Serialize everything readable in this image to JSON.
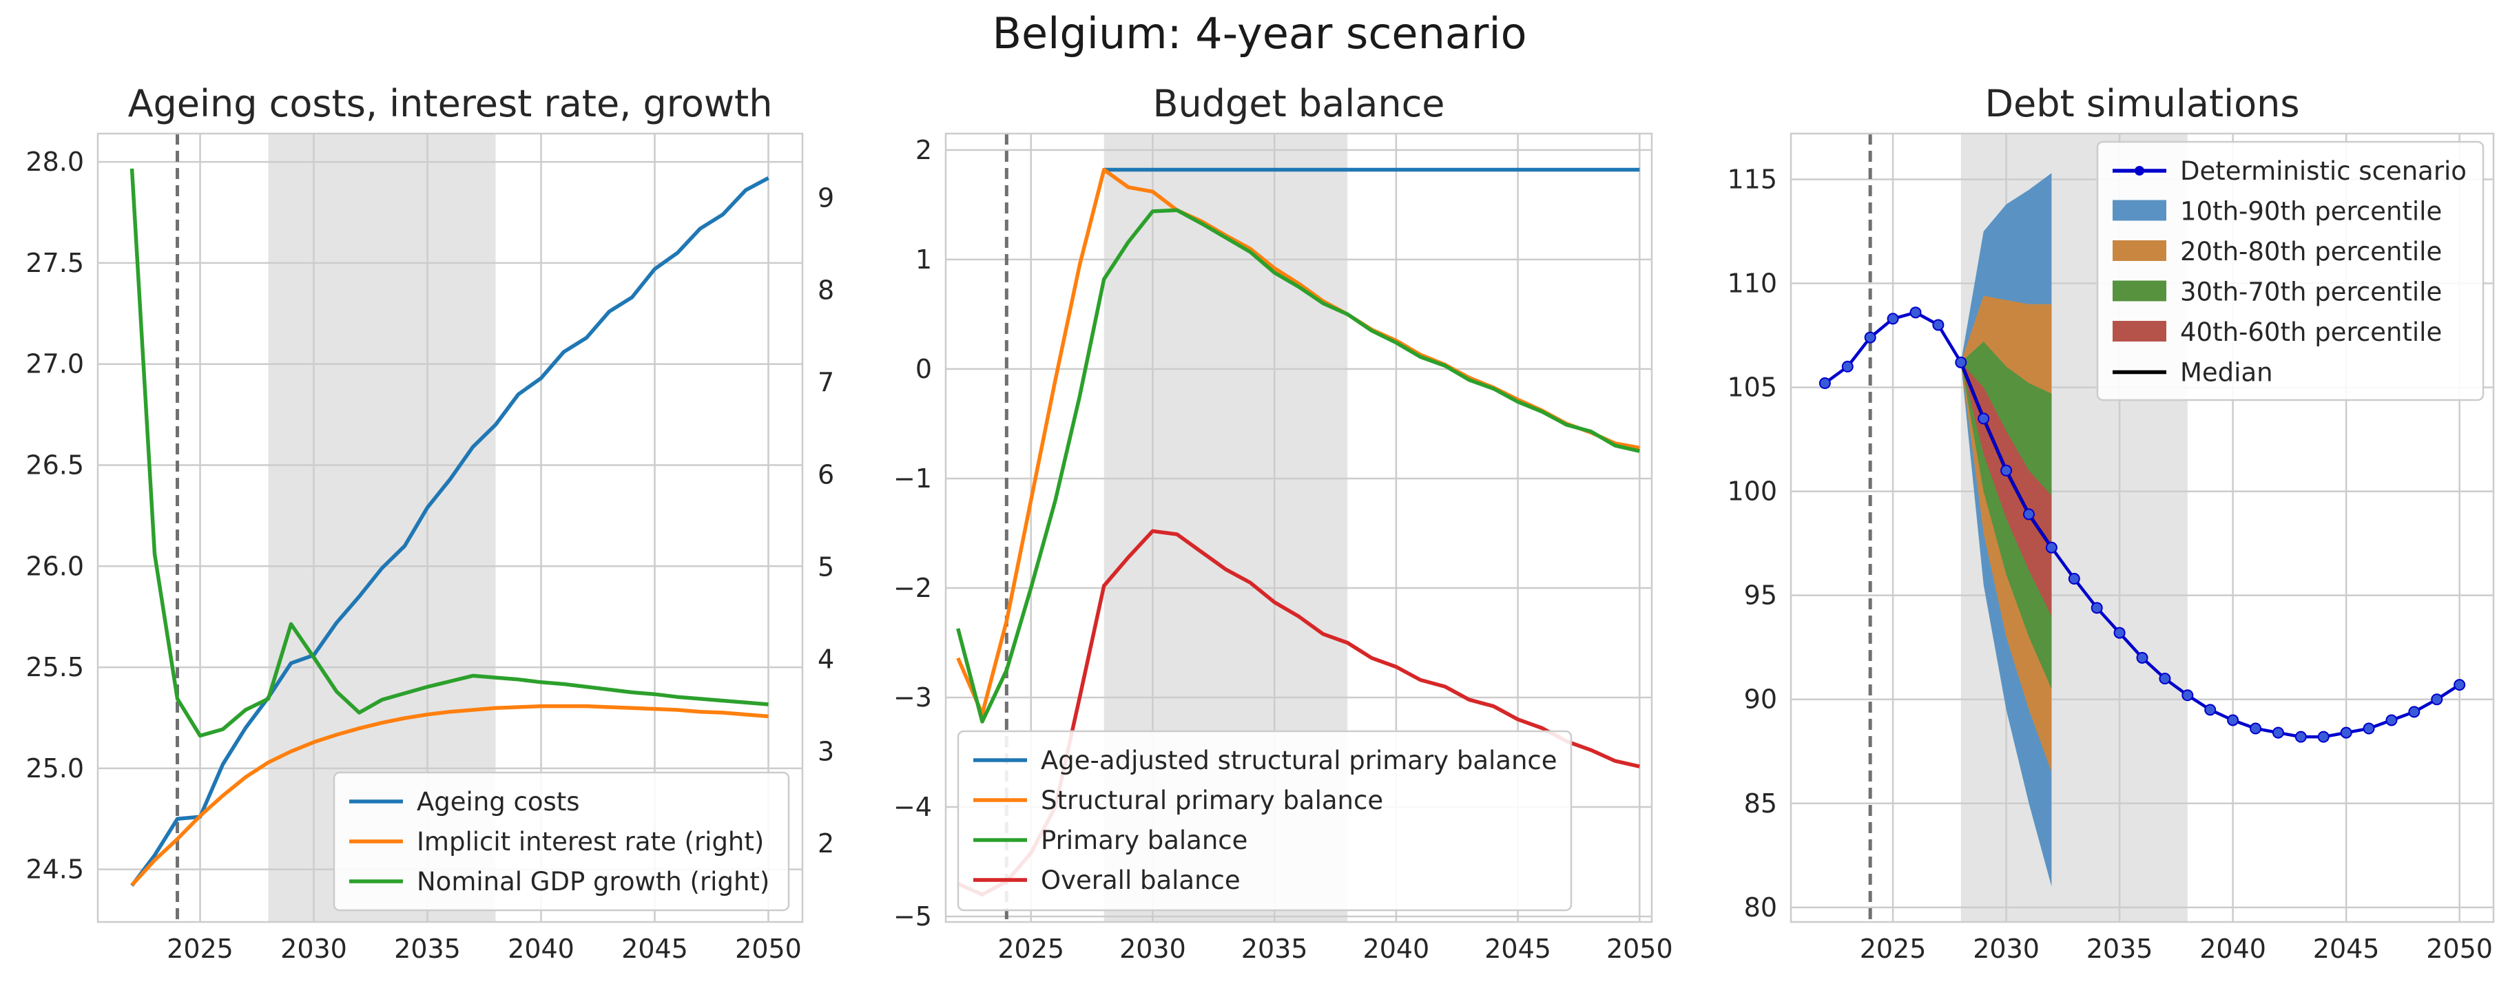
{
  "suptitle": "Belgium: 4-year scenario",
  "colors": {
    "blue": "#1f77b4",
    "orange": "#ff7f0e",
    "green": "#2ca02c",
    "red": "#d62728",
    "grid": "#cccccc",
    "shade": "#e4e4e4",
    "dashed": "#707070",
    "deterministic": "#0000cc",
    "fan10": "#5a93c3",
    "fan20": "#c98641",
    "fan30": "#57923f",
    "fan40": "#b5534a",
    "median": "#000000"
  },
  "chart_data": [
    {
      "type": "line",
      "title": "Ageing costs, interest rate, growth",
      "xlabel": "",
      "ylabel": "",
      "xlim": [
        2020.5,
        2051.5
      ],
      "ylim": [
        24.24,
        28.14
      ],
      "y2lim": [
        1.15,
        9.7
      ],
      "xticks": [
        2025,
        2030,
        2035,
        2040,
        2045,
        2050
      ],
      "yticks": [
        "24.5",
        "25.0",
        "25.5",
        "26.0",
        "26.5",
        "27.0",
        "27.5",
        "28.0"
      ],
      "y2ticks": [
        "2",
        "3",
        "4",
        "5",
        "6",
        "7",
        "8",
        "9"
      ],
      "shaded_span": [
        2028,
        2038
      ],
      "vline": 2024,
      "grid": true,
      "legend_position": "lower-right",
      "x": [
        2022,
        2023,
        2024,
        2025,
        2026,
        2027,
        2028,
        2029,
        2030,
        2031,
        2032,
        2033,
        2034,
        2035,
        2036,
        2037,
        2038,
        2039,
        2040,
        2041,
        2042,
        2043,
        2044,
        2045,
        2046,
        2047,
        2048,
        2049,
        2050
      ],
      "series": [
        {
          "name": "Ageing costs",
          "axis": "left",
          "color_key": "blue",
          "values": [
            24.42,
            24.57,
            24.75,
            24.76,
            25.02,
            25.2,
            25.35,
            25.52,
            25.56,
            25.72,
            25.85,
            25.99,
            26.1,
            26.29,
            26.43,
            26.59,
            26.7,
            26.85,
            26.93,
            27.06,
            27.13,
            27.26,
            27.33,
            27.47,
            27.55,
            27.67,
            27.74,
            27.86,
            27.92
          ]
        },
        {
          "name": "Implicit interest rate (right)",
          "axis": "right",
          "color_key": "orange",
          "values": [
            1.55,
            1.82,
            2.05,
            2.3,
            2.52,
            2.72,
            2.88,
            3.0,
            3.1,
            3.18,
            3.25,
            3.31,
            3.36,
            3.4,
            3.43,
            3.45,
            3.47,
            3.48,
            3.49,
            3.49,
            3.49,
            3.48,
            3.47,
            3.46,
            3.45,
            3.43,
            3.42,
            3.4,
            3.38
          ]
        },
        {
          "name": "Nominal GDP growth (right)",
          "axis": "right",
          "color_key": "green",
          "values": [
            9.32,
            5.14,
            3.57,
            3.17,
            3.24,
            3.45,
            3.57,
            4.38,
            4.02,
            3.65,
            3.42,
            3.56,
            3.63,
            3.7,
            3.76,
            3.82,
            3.8,
            3.78,
            3.75,
            3.73,
            3.7,
            3.67,
            3.64,
            3.62,
            3.59,
            3.57,
            3.55,
            3.53,
            3.51
          ]
        }
      ]
    },
    {
      "type": "line",
      "title": "Budget balance",
      "xlabel": "",
      "ylabel": "",
      "xlim": [
        2021.5,
        2050.5
      ],
      "ylim": [
        -5.05,
        2.15
      ],
      "xticks": [
        2025,
        2030,
        2035,
        2040,
        2045,
        2050
      ],
      "yticks": [
        "−5",
        "−4",
        "−3",
        "−2",
        "−1",
        "0",
        "1",
        "2"
      ],
      "ytick_values": [
        -5,
        -4,
        -3,
        -2,
        -1,
        0,
        1,
        2
      ],
      "shaded_span": [
        2028,
        2038
      ],
      "vline": 2024,
      "grid": true,
      "legend_position": "lower-left",
      "series": [
        {
          "name": "Age-adjusted structural primary balance",
          "color_key": "blue",
          "x": [
            2028,
            2029,
            2030,
            2031,
            2032,
            2033,
            2034,
            2035,
            2036,
            2037,
            2038,
            2039,
            2040,
            2041,
            2042,
            2043,
            2044,
            2045,
            2046,
            2047,
            2048,
            2049,
            2050
          ],
          "values": [
            1.82,
            1.82,
            1.82,
            1.82,
            1.82,
            1.82,
            1.82,
            1.82,
            1.82,
            1.82,
            1.82,
            1.82,
            1.82,
            1.82,
            1.82,
            1.82,
            1.82,
            1.82,
            1.82,
            1.82,
            1.82,
            1.82,
            1.82
          ]
        },
        {
          "name": "Structural primary balance",
          "color_key": "orange",
          "x": [
            2022,
            2023,
            2024,
            2025,
            2026,
            2027,
            2028,
            2029,
            2030,
            2031,
            2032,
            2033,
            2034,
            2035,
            2036,
            2037,
            2038,
            2039,
            2040,
            2041,
            2042,
            2043,
            2044,
            2045,
            2046,
            2047,
            2048,
            2049,
            2050
          ],
          "values": [
            -2.64,
            -3.15,
            -2.3,
            -1.2,
            -0.1,
            0.95,
            1.82,
            1.66,
            1.62,
            1.45,
            1.35,
            1.22,
            1.1,
            0.92,
            0.78,
            0.62,
            0.5,
            0.36,
            0.26,
            0.13,
            0.04,
            -0.08,
            -0.17,
            -0.28,
            -0.38,
            -0.5,
            -0.58,
            -0.68,
            -0.72
          ]
        },
        {
          "name": "Primary balance",
          "color_key": "green",
          "x": [
            2022,
            2023,
            2024,
            2025,
            2026,
            2027,
            2028,
            2029,
            2030,
            2031,
            2032,
            2033,
            2034,
            2035,
            2036,
            2037,
            2038,
            2039,
            2040,
            2041,
            2042,
            2043,
            2044,
            2045,
            2046,
            2047,
            2048,
            2049,
            2050
          ],
          "values": [
            -2.37,
            -3.22,
            -2.75,
            -2.0,
            -1.2,
            -0.25,
            0.82,
            1.16,
            1.44,
            1.45,
            1.33,
            1.2,
            1.07,
            0.88,
            0.75,
            0.6,
            0.5,
            0.35,
            0.24,
            0.11,
            0.03,
            -0.1,
            -0.18,
            -0.3,
            -0.39,
            -0.51,
            -0.57,
            -0.7,
            -0.75
          ]
        },
        {
          "name": "Overall balance",
          "color_key": "red",
          "x": [
            2022,
            2023,
            2024,
            2025,
            2026,
            2027,
            2028,
            2029,
            2030,
            2031,
            2032,
            2033,
            2034,
            2035,
            2036,
            2037,
            2038,
            2039,
            2040,
            2041,
            2042,
            2043,
            2044,
            2045,
            2046,
            2047,
            2048,
            2049,
            2050
          ],
          "values": [
            -4.7,
            -4.8,
            -4.68,
            -4.42,
            -4.0,
            -3.0,
            -1.98,
            -1.72,
            -1.48,
            -1.51,
            -1.67,
            -1.83,
            -1.95,
            -2.13,
            -2.26,
            -2.42,
            -2.5,
            -2.64,
            -2.72,
            -2.84,
            -2.9,
            -3.02,
            -3.08,
            -3.2,
            -3.28,
            -3.4,
            -3.48,
            -3.58,
            -3.63
          ]
        }
      ]
    },
    {
      "type": "area",
      "title": "Debt simulations",
      "xlabel": "",
      "ylabel": "",
      "xlim": [
        2020.5,
        2051.5
      ],
      "ylim": [
        79.3,
        117.2
      ],
      "xticks": [
        2025,
        2030,
        2035,
        2040,
        2045,
        2050
      ],
      "yticks": [
        "80",
        "85",
        "90",
        "95",
        "100",
        "105",
        "110",
        "115"
      ],
      "ytick_values": [
        80,
        85,
        90,
        95,
        100,
        105,
        110,
        115
      ],
      "shaded_span": [
        2028,
        2038
      ],
      "vline": 2024,
      "grid": true,
      "legend_position": "top-right",
      "deterministic": {
        "name": "Deterministic scenario",
        "x": [
          2022,
          2023,
          2024,
          2025,
          2026,
          2027,
          2028,
          2029,
          2030,
          2031,
          2032,
          2033,
          2034,
          2035,
          2036,
          2037,
          2038,
          2039,
          2040,
          2041,
          2042,
          2043,
          2044,
          2045,
          2046,
          2047,
          2048,
          2049,
          2050
        ],
        "values": [
          105.2,
          106.0,
          107.4,
          108.3,
          108.6,
          108.0,
          106.2,
          103.5,
          101.0,
          98.9,
          97.3,
          95.8,
          94.4,
          93.2,
          92.0,
          91.0,
          90.2,
          89.5,
          89.0,
          88.6,
          88.4,
          88.2,
          88.2,
          88.4,
          88.6,
          89.0,
          89.4,
          90.0,
          90.7
        ]
      },
      "fan_x": [
        2028,
        2029,
        2030,
        2031,
        2032
      ],
      "bands": [
        {
          "name": "10th-90th percentile",
          "color_key": "fan10",
          "low": [
            106.2,
            95.5,
            89.5,
            85.0,
            81.0
          ],
          "high": [
            106.2,
            112.5,
            113.8,
            114.5,
            115.3
          ]
        },
        {
          "name": "20th-80th percentile",
          "color_key": "fan20",
          "low": [
            106.2,
            98.0,
            93.0,
            89.5,
            86.5
          ],
          "high": [
            106.2,
            109.4,
            109.2,
            109.0,
            109.0
          ]
        },
        {
          "name": "30th-70th percentile",
          "color_key": "fan30",
          "low": [
            106.2,
            100.0,
            96.0,
            93.0,
            90.5
          ],
          "high": [
            106.2,
            107.2,
            106.0,
            105.2,
            104.7
          ]
        },
        {
          "name": "40th-60th percentile",
          "color_key": "fan40",
          "low": [
            106.2,
            101.8,
            98.7,
            96.2,
            94.0
          ],
          "high": [
            106.2,
            105.0,
            102.9,
            101.0,
            99.8
          ]
        }
      ],
      "median": {
        "name": "Median",
        "values": [
          106.2,
          103.5,
          101.0,
          98.9,
          97.3
        ]
      }
    }
  ]
}
